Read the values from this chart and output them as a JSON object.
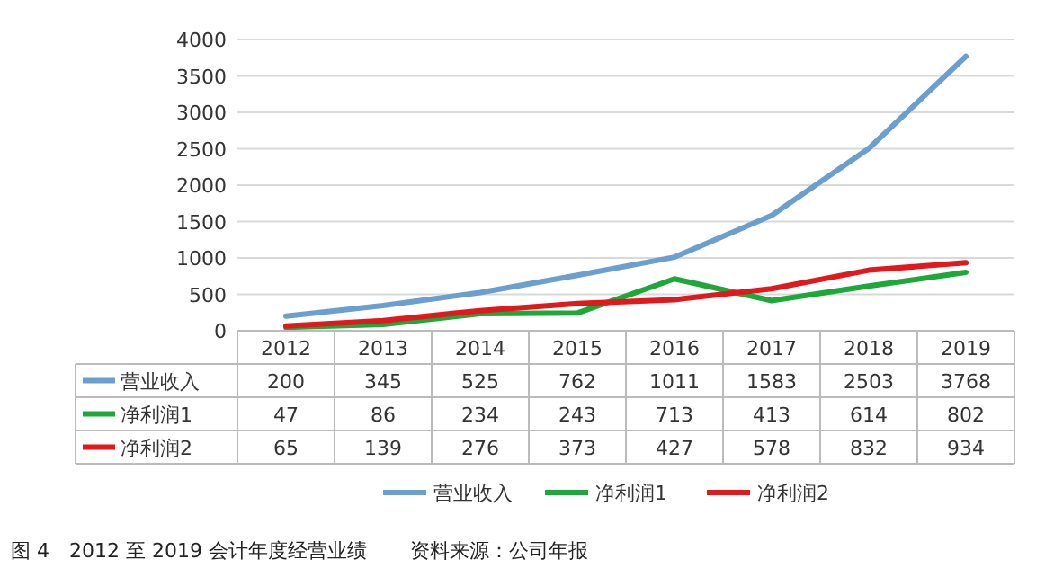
{
  "chart_data": {
    "type": "line",
    "categories": [
      "2012",
      "2013",
      "2014",
      "2015",
      "2016",
      "2017",
      "2018",
      "2019"
    ],
    "series": [
      {
        "name": "营业收入",
        "color": "#6a9fd0",
        "values": [
          200,
          345,
          525,
          762,
          1011,
          1583,
          2503,
          3768
        ]
      },
      {
        "name": "净利润1",
        "color": "#1fa83a",
        "values": [
          47,
          86,
          234,
          243,
          713,
          413,
          614,
          802
        ]
      },
      {
        "name": "净利润2",
        "color": "#e0191c",
        "values": [
          65,
          139,
          276,
          373,
          427,
          578,
          832,
          934
        ]
      }
    ],
    "ylim": [
      0,
      4000
    ],
    "yticks": [
      0,
      500,
      1000,
      1500,
      2000,
      2500,
      3000,
      3500,
      4000
    ],
    "grid": "y",
    "legend": "bottom",
    "data_labels": true,
    "annotations": [
      "图 4　2012 至 2019 会计年度经营业绩",
      "资料来源：公司年报"
    ]
  }
}
